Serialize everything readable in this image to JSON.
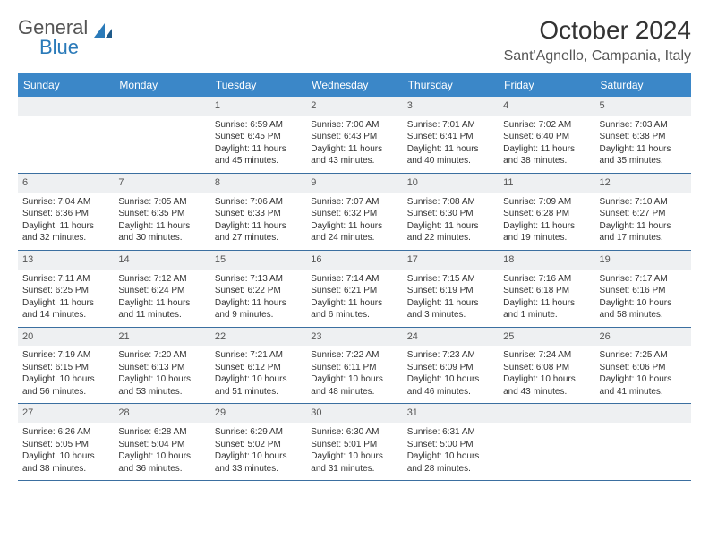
{
  "logo": {
    "text1": "General",
    "text2": "Blue"
  },
  "title": "October 2024",
  "location": "Sant'Agnello, Campania, Italy",
  "header_bg": "#3b87c8",
  "daynum_bg": "#eef0f2",
  "row_border": "#3b6fa0",
  "weekdays": [
    "Sunday",
    "Monday",
    "Tuesday",
    "Wednesday",
    "Thursday",
    "Friday",
    "Saturday"
  ],
  "weeks": [
    [
      null,
      null,
      {
        "n": "1",
        "sr": "Sunrise: 6:59 AM",
        "ss": "Sunset: 6:45 PM",
        "d1": "Daylight: 11 hours",
        "d2": "and 45 minutes."
      },
      {
        "n": "2",
        "sr": "Sunrise: 7:00 AM",
        "ss": "Sunset: 6:43 PM",
        "d1": "Daylight: 11 hours",
        "d2": "and 43 minutes."
      },
      {
        "n": "3",
        "sr": "Sunrise: 7:01 AM",
        "ss": "Sunset: 6:41 PM",
        "d1": "Daylight: 11 hours",
        "d2": "and 40 minutes."
      },
      {
        "n": "4",
        "sr": "Sunrise: 7:02 AM",
        "ss": "Sunset: 6:40 PM",
        "d1": "Daylight: 11 hours",
        "d2": "and 38 minutes."
      },
      {
        "n": "5",
        "sr": "Sunrise: 7:03 AM",
        "ss": "Sunset: 6:38 PM",
        "d1": "Daylight: 11 hours",
        "d2": "and 35 minutes."
      }
    ],
    [
      {
        "n": "6",
        "sr": "Sunrise: 7:04 AM",
        "ss": "Sunset: 6:36 PM",
        "d1": "Daylight: 11 hours",
        "d2": "and 32 minutes."
      },
      {
        "n": "7",
        "sr": "Sunrise: 7:05 AM",
        "ss": "Sunset: 6:35 PM",
        "d1": "Daylight: 11 hours",
        "d2": "and 30 minutes."
      },
      {
        "n": "8",
        "sr": "Sunrise: 7:06 AM",
        "ss": "Sunset: 6:33 PM",
        "d1": "Daylight: 11 hours",
        "d2": "and 27 minutes."
      },
      {
        "n": "9",
        "sr": "Sunrise: 7:07 AM",
        "ss": "Sunset: 6:32 PM",
        "d1": "Daylight: 11 hours",
        "d2": "and 24 minutes."
      },
      {
        "n": "10",
        "sr": "Sunrise: 7:08 AM",
        "ss": "Sunset: 6:30 PM",
        "d1": "Daylight: 11 hours",
        "d2": "and 22 minutes."
      },
      {
        "n": "11",
        "sr": "Sunrise: 7:09 AM",
        "ss": "Sunset: 6:28 PM",
        "d1": "Daylight: 11 hours",
        "d2": "and 19 minutes."
      },
      {
        "n": "12",
        "sr": "Sunrise: 7:10 AM",
        "ss": "Sunset: 6:27 PM",
        "d1": "Daylight: 11 hours",
        "d2": "and 17 minutes."
      }
    ],
    [
      {
        "n": "13",
        "sr": "Sunrise: 7:11 AM",
        "ss": "Sunset: 6:25 PM",
        "d1": "Daylight: 11 hours",
        "d2": "and 14 minutes."
      },
      {
        "n": "14",
        "sr": "Sunrise: 7:12 AM",
        "ss": "Sunset: 6:24 PM",
        "d1": "Daylight: 11 hours",
        "d2": "and 11 minutes."
      },
      {
        "n": "15",
        "sr": "Sunrise: 7:13 AM",
        "ss": "Sunset: 6:22 PM",
        "d1": "Daylight: 11 hours",
        "d2": "and 9 minutes."
      },
      {
        "n": "16",
        "sr": "Sunrise: 7:14 AM",
        "ss": "Sunset: 6:21 PM",
        "d1": "Daylight: 11 hours",
        "d2": "and 6 minutes."
      },
      {
        "n": "17",
        "sr": "Sunrise: 7:15 AM",
        "ss": "Sunset: 6:19 PM",
        "d1": "Daylight: 11 hours",
        "d2": "and 3 minutes."
      },
      {
        "n": "18",
        "sr": "Sunrise: 7:16 AM",
        "ss": "Sunset: 6:18 PM",
        "d1": "Daylight: 11 hours",
        "d2": "and 1 minute."
      },
      {
        "n": "19",
        "sr": "Sunrise: 7:17 AM",
        "ss": "Sunset: 6:16 PM",
        "d1": "Daylight: 10 hours",
        "d2": "and 58 minutes."
      }
    ],
    [
      {
        "n": "20",
        "sr": "Sunrise: 7:19 AM",
        "ss": "Sunset: 6:15 PM",
        "d1": "Daylight: 10 hours",
        "d2": "and 56 minutes."
      },
      {
        "n": "21",
        "sr": "Sunrise: 7:20 AM",
        "ss": "Sunset: 6:13 PM",
        "d1": "Daylight: 10 hours",
        "d2": "and 53 minutes."
      },
      {
        "n": "22",
        "sr": "Sunrise: 7:21 AM",
        "ss": "Sunset: 6:12 PM",
        "d1": "Daylight: 10 hours",
        "d2": "and 51 minutes."
      },
      {
        "n": "23",
        "sr": "Sunrise: 7:22 AM",
        "ss": "Sunset: 6:11 PM",
        "d1": "Daylight: 10 hours",
        "d2": "and 48 minutes."
      },
      {
        "n": "24",
        "sr": "Sunrise: 7:23 AM",
        "ss": "Sunset: 6:09 PM",
        "d1": "Daylight: 10 hours",
        "d2": "and 46 minutes."
      },
      {
        "n": "25",
        "sr": "Sunrise: 7:24 AM",
        "ss": "Sunset: 6:08 PM",
        "d1": "Daylight: 10 hours",
        "d2": "and 43 minutes."
      },
      {
        "n": "26",
        "sr": "Sunrise: 7:25 AM",
        "ss": "Sunset: 6:06 PM",
        "d1": "Daylight: 10 hours",
        "d2": "and 41 minutes."
      }
    ],
    [
      {
        "n": "27",
        "sr": "Sunrise: 6:26 AM",
        "ss": "Sunset: 5:05 PM",
        "d1": "Daylight: 10 hours",
        "d2": "and 38 minutes."
      },
      {
        "n": "28",
        "sr": "Sunrise: 6:28 AM",
        "ss": "Sunset: 5:04 PM",
        "d1": "Daylight: 10 hours",
        "d2": "and 36 minutes."
      },
      {
        "n": "29",
        "sr": "Sunrise: 6:29 AM",
        "ss": "Sunset: 5:02 PM",
        "d1": "Daylight: 10 hours",
        "d2": "and 33 minutes."
      },
      {
        "n": "30",
        "sr": "Sunrise: 6:30 AM",
        "ss": "Sunset: 5:01 PM",
        "d1": "Daylight: 10 hours",
        "d2": "and 31 minutes."
      },
      {
        "n": "31",
        "sr": "Sunrise: 6:31 AM",
        "ss": "Sunset: 5:00 PM",
        "d1": "Daylight: 10 hours",
        "d2": "and 28 minutes."
      },
      null,
      null
    ]
  ]
}
